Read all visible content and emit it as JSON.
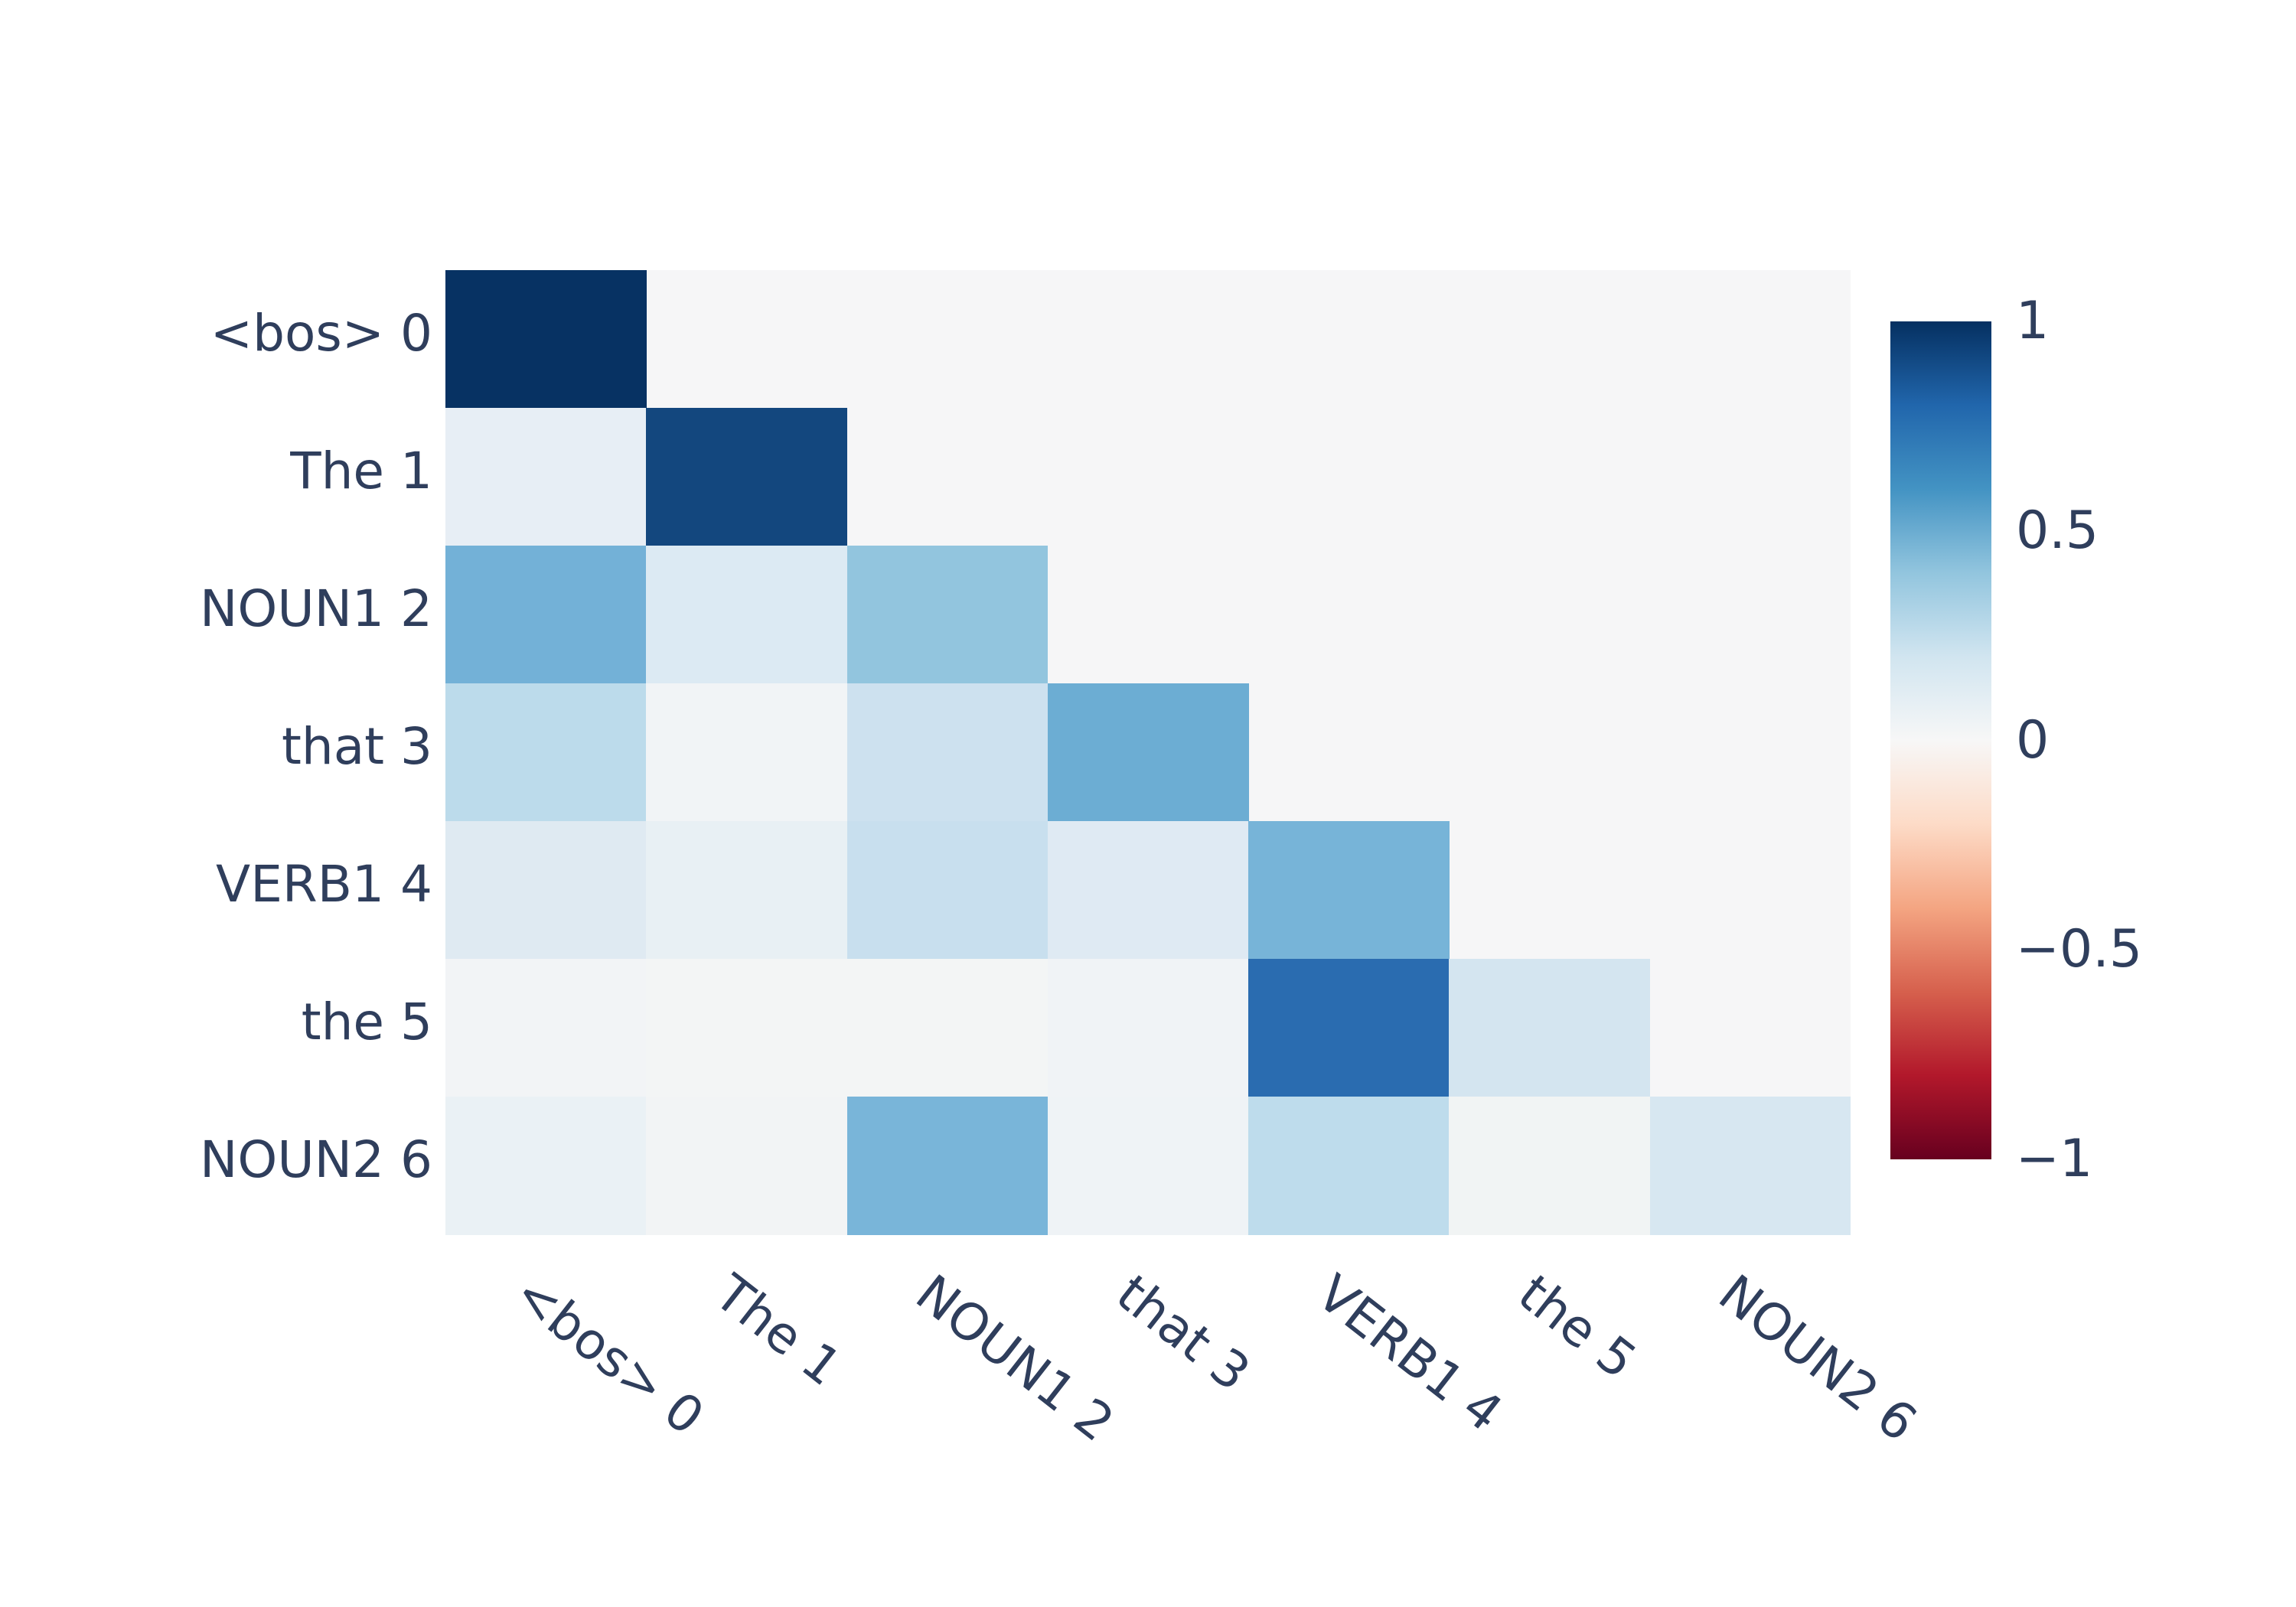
{
  "figure": {
    "background": "#ffffff",
    "text_color": "#2f3e5c"
  },
  "chart_data": {
    "type": "heatmap",
    "title": "",
    "xlabel": "",
    "ylabel": "",
    "grid": false,
    "legend_position": "right-colorbar",
    "x_tick_labels": [
      "<bos> 0",
      "The 1",
      "NOUN1 2",
      "that 3",
      "VERB1 4",
      "the 5",
      "NOUN2 6"
    ],
    "y_tick_labels": [
      "<bos> 0",
      "The 1",
      "NOUN1 2",
      "that 3",
      "VERB1 4",
      "the 5",
      "NOUN2 6"
    ],
    "x_label_rotation_deg": 38,
    "matrix_values": [
      [
        0.99,
        null,
        null,
        null,
        null,
        null,
        null
      ],
      [
        0.1,
        0.9,
        null,
        null,
        null,
        null,
        null
      ],
      [
        0.47,
        0.13,
        0.4,
        null,
        null,
        null,
        null
      ],
      [
        0.28,
        0.03,
        0.22,
        0.52,
        null,
        null,
        null
      ],
      [
        0.14,
        0.08,
        0.24,
        0.14,
        0.46,
        null,
        null
      ],
      [
        0.03,
        0.02,
        0.02,
        0.04,
        0.78,
        0.18,
        null
      ],
      [
        0.08,
        0.03,
        0.45,
        0.04,
        0.27,
        0.02,
        0.16
      ]
    ],
    "cell_colors": [
      [
        "#073263"
      ],
      [
        "#e7eef5",
        "#13477e"
      ],
      [
        "#73b1d7",
        "#dceaf3",
        "#92c5de"
      ],
      [
        "#bcdbeb",
        "#f1f4f6",
        "#cde1ef",
        "#6cadd3"
      ],
      [
        "#dfeaf2",
        "#e8f0f4",
        "#c8dfee",
        "#dfeaf3",
        "#77b4d8"
      ],
      [
        "#f2f4f6",
        "#f3f5f5",
        "#f3f5f5",
        "#f0f3f6",
        "#2a6cb0",
        "#d4e5f0"
      ],
      [
        "#eaf1f5",
        "#f2f4f5",
        "#79b5d9",
        "#eff3f6",
        "#bedcec",
        "#f1f4f4",
        "#d7e7f1"
      ]
    ],
    "masked_color": "#f6f6f7",
    "colorbar": {
      "colormap": "RdBu_r",
      "vmin": -1,
      "vmax": 1,
      "tick_labels": [
        "1",
        "0.5",
        "0",
        "−0.5",
        "−1"
      ],
      "tick_values": [
        1,
        0.5,
        0,
        -0.5,
        -1
      ],
      "gradient_stops": [
        "#053061",
        "#2166ac",
        "#4393c3",
        "#92c5de",
        "#d1e5f0",
        "#f7f7f7",
        "#fddbc7",
        "#f4a582",
        "#d6604d",
        "#b2182b",
        "#67001f"
      ]
    }
  }
}
